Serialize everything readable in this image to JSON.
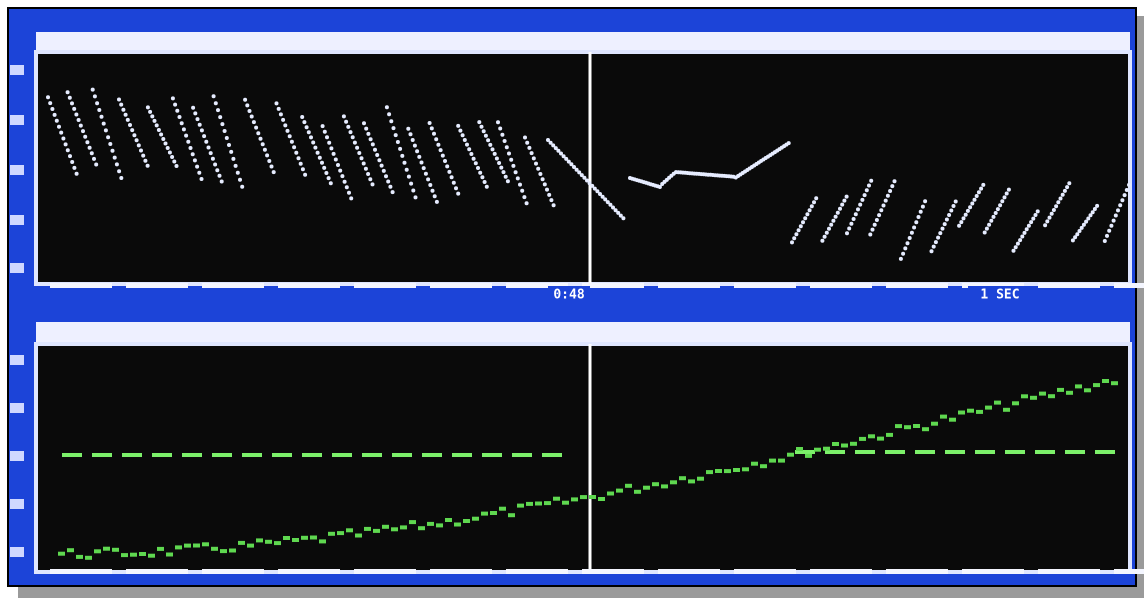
{
  "top_panel": {
    "time_label": "0:48",
    "scale_label": "1 SEC"
  }
}
